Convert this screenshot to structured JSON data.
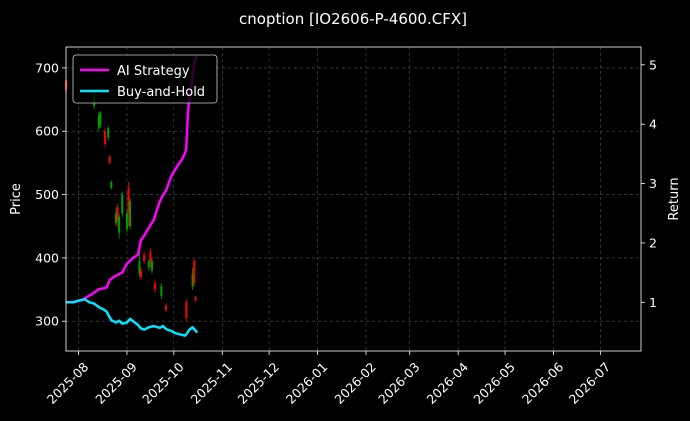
{
  "chart_data": {
    "type": "line",
    "title": "cnoption [IO2606-P-4600.CFX]",
    "ylabel": "Price",
    "y2label": "Return",
    "x_range": [
      "2025-07-24",
      "2026-07-27"
    ],
    "ylim": [
      253,
      733
    ],
    "y2lim": [
      0.18,
      5.3
    ],
    "y_ticks": [
      300,
      400,
      500,
      600,
      700
    ],
    "y2_ticks": [
      1,
      2,
      3,
      4,
      5
    ],
    "x_tick_labels": [
      "2025-08",
      "2025-09",
      "2025-10",
      "2025-11",
      "2025-12",
      "2026-01",
      "2026-02",
      "2026-03",
      "2026-04",
      "2026-05",
      "2026-06",
      "2026-07"
    ],
    "x_tick_dates": [
      "2025-08-01",
      "2025-09-01",
      "2025-10-01",
      "2025-11-01",
      "2025-12-01",
      "2026-01-01",
      "2026-02-01",
      "2026-03-01",
      "2026-04-01",
      "2026-05-01",
      "2026-06-01",
      "2026-07-01"
    ],
    "grid": true,
    "legend": {
      "placement": "top-left",
      "entries": [
        "AI Strategy",
        "Buy-and-Hold"
      ]
    },
    "colors": {
      "ai": "#ff00ff",
      "bh": "#00e5ff",
      "up": "#00a000",
      "down": "#ff0000",
      "grid": "#555555"
    },
    "candles": [
      {
        "date": "2025-07-24",
        "open": 680,
        "close": 665,
        "high": 685,
        "low": 660
      },
      {
        "date": "2025-08-11",
        "open": 640,
        "close": 660,
        "high": 665,
        "low": 635
      },
      {
        "date": "2025-08-14",
        "open": 605,
        "close": 625,
        "high": 630,
        "low": 600
      },
      {
        "date": "2025-08-15",
        "open": 610,
        "close": 630,
        "high": 632,
        "low": 606
      },
      {
        "date": "2025-08-18",
        "open": 600,
        "close": 580,
        "high": 605,
        "low": 575
      },
      {
        "date": "2025-08-20",
        "open": 590,
        "close": 605,
        "high": 608,
        "low": 585
      },
      {
        "date": "2025-08-21",
        "open": 560,
        "close": 550,
        "high": 562,
        "low": 548
      },
      {
        "date": "2025-08-22",
        "open": 510,
        "close": 520,
        "high": 522,
        "low": 508
      },
      {
        "date": "2025-08-25",
        "open": 455,
        "close": 470,
        "high": 480,
        "low": 450
      },
      {
        "date": "2025-08-26",
        "open": 480,
        "close": 460,
        "high": 485,
        "low": 450
      },
      {
        "date": "2025-08-27",
        "open": 440,
        "close": 465,
        "high": 470,
        "low": 430
      },
      {
        "date": "2025-08-29",
        "open": 470,
        "close": 500,
        "high": 505,
        "low": 465
      },
      {
        "date": "2025-09-01",
        "open": 445,
        "close": 470,
        "high": 475,
        "low": 440
      },
      {
        "date": "2025-09-02",
        "open": 510,
        "close": 470,
        "high": 520,
        "low": 450
      },
      {
        "date": "2025-09-03",
        "open": 450,
        "close": 490,
        "high": 495,
        "low": 445
      },
      {
        "date": "2025-09-09",
        "open": 375,
        "close": 395,
        "high": 410,
        "low": 370
      },
      {
        "date": "2025-09-10",
        "open": 380,
        "close": 370,
        "high": 385,
        "low": 365
      },
      {
        "date": "2025-09-12",
        "open": 405,
        "close": 395,
        "high": 410,
        "low": 390
      },
      {
        "date": "2025-09-15",
        "open": 385,
        "close": 395,
        "high": 398,
        "low": 380
      },
      {
        "date": "2025-09-16",
        "open": 410,
        "close": 395,
        "high": 415,
        "low": 385
      },
      {
        "date": "2025-09-17",
        "open": 380,
        "close": 395,
        "high": 400,
        "low": 375
      },
      {
        "date": "2025-09-19",
        "open": 360,
        "close": 350,
        "high": 365,
        "low": 345
      },
      {
        "date": "2025-09-23",
        "open": 340,
        "close": 355,
        "high": 360,
        "low": 335
      },
      {
        "date": "2025-09-26",
        "open": 325,
        "close": 318,
        "high": 328,
        "low": 315
      },
      {
        "date": "2025-10-09",
        "open": 330,
        "close": 305,
        "high": 335,
        "low": 300
      },
      {
        "date": "2025-10-13",
        "open": 355,
        "close": 375,
        "high": 385,
        "low": 350
      },
      {
        "date": "2025-10-14",
        "open": 395,
        "close": 360,
        "high": 400,
        "low": 355
      },
      {
        "date": "2025-10-15",
        "open": 338,
        "close": 333,
        "high": 340,
        "low": 330
      }
    ],
    "series": [
      {
        "name": "AI Strategy",
        "axis": "right",
        "points": [
          [
            "2025-07-24",
            1.0
          ],
          [
            "2025-07-28",
            1.0
          ],
          [
            "2025-08-01",
            1.02
          ],
          [
            "2025-08-04",
            1.05
          ],
          [
            "2025-08-07",
            1.1
          ],
          [
            "2025-08-11",
            1.16
          ],
          [
            "2025-08-14",
            1.22
          ],
          [
            "2025-08-19",
            1.25
          ],
          [
            "2025-08-21",
            1.38
          ],
          [
            "2025-08-25",
            1.45
          ],
          [
            "2025-08-29",
            1.5
          ],
          [
            "2025-09-01",
            1.65
          ],
          [
            "2025-09-03",
            1.7
          ],
          [
            "2025-09-05",
            1.75
          ],
          [
            "2025-09-08",
            1.8
          ],
          [
            "2025-09-10",
            2.05
          ],
          [
            "2025-09-12",
            2.12
          ],
          [
            "2025-09-16",
            2.3
          ],
          [
            "2025-09-18",
            2.38
          ],
          [
            "2025-09-22",
            2.7
          ],
          [
            "2025-09-24",
            2.8
          ],
          [
            "2025-09-26",
            2.88
          ],
          [
            "2025-09-29",
            3.1
          ],
          [
            "2025-10-01",
            3.2
          ],
          [
            "2025-10-03",
            3.28
          ],
          [
            "2025-10-06",
            3.4
          ],
          [
            "2025-10-08",
            3.5
          ],
          [
            "2025-10-09",
            3.6
          ],
          [
            "2025-10-10",
            4.2
          ],
          [
            "2025-10-11",
            4.45
          ],
          [
            "2025-10-12",
            4.6
          ],
          [
            "2025-10-13",
            4.8
          ],
          [
            "2025-10-14",
            5.02
          ],
          [
            "2025-10-15",
            5.12
          ],
          [
            "2025-10-16",
            5.15
          ]
        ]
      },
      {
        "name": "Buy-and-Hold",
        "axis": "right",
        "points": [
          [
            "2025-07-24",
            1.0
          ],
          [
            "2025-07-26",
            1.0
          ],
          [
            "2025-07-29",
            1.0
          ],
          [
            "2025-07-31",
            1.02
          ],
          [
            "2025-08-03",
            1.04
          ],
          [
            "2025-08-05",
            1.05
          ],
          [
            "2025-08-08",
            1.0
          ],
          [
            "2025-08-11",
            0.98
          ],
          [
            "2025-08-14",
            0.92
          ],
          [
            "2025-08-17",
            0.88
          ],
          [
            "2025-08-19",
            0.84
          ],
          [
            "2025-08-22",
            0.7
          ],
          [
            "2025-08-25",
            0.66
          ],
          [
            "2025-08-27",
            0.69
          ],
          [
            "2025-08-29",
            0.64
          ],
          [
            "2025-09-01",
            0.66
          ],
          [
            "2025-09-03",
            0.72
          ],
          [
            "2025-09-05",
            0.68
          ],
          [
            "2025-09-08",
            0.62
          ],
          [
            "2025-09-10",
            0.56
          ],
          [
            "2025-09-12",
            0.54
          ],
          [
            "2025-09-15",
            0.58
          ],
          [
            "2025-09-18",
            0.6
          ],
          [
            "2025-09-22",
            0.57
          ],
          [
            "2025-09-24",
            0.6
          ],
          [
            "2025-09-26",
            0.55
          ],
          [
            "2025-09-29",
            0.52
          ],
          [
            "2025-10-02",
            0.48
          ],
          [
            "2025-10-05",
            0.46
          ],
          [
            "2025-10-08",
            0.44
          ],
          [
            "2025-10-09",
            0.46
          ],
          [
            "2025-10-11",
            0.54
          ],
          [
            "2025-10-13",
            0.58
          ],
          [
            "2025-10-14",
            0.55
          ],
          [
            "2025-10-16",
            0.49
          ]
        ]
      }
    ]
  }
}
